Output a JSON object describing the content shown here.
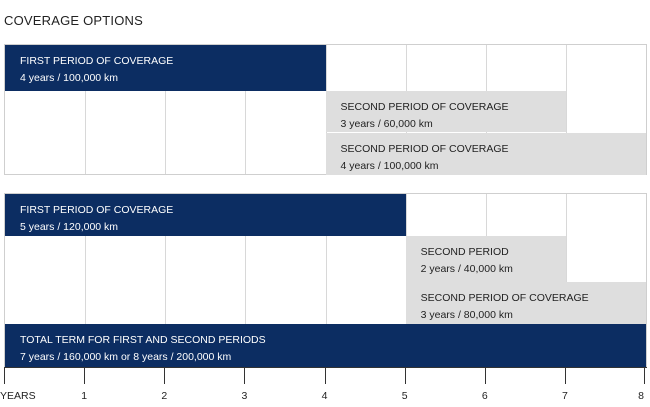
{
  "title": "COVERAGE OPTIONS",
  "option1": {
    "first": {
      "title": "FIRST PERIOD OF COVERAGE",
      "detail": "4 years / 100,000 km",
      "start_year": 0,
      "end_year": 4
    },
    "second_a": {
      "title": "SECOND PERIOD OF COVERAGE",
      "detail": "3 years / 60,000 km",
      "start_year": 4,
      "end_year": 7
    },
    "second_b": {
      "title": "SECOND PERIOD OF COVERAGE",
      "detail": "4 years / 100,000 km",
      "start_year": 4,
      "end_year": 8
    }
  },
  "option2": {
    "first": {
      "title": "FIRST PERIOD OF COVERAGE",
      "detail": "5 years / 120,000 km",
      "start_year": 0,
      "end_year": 5
    },
    "second_a": {
      "title": "SECOND PERIOD",
      "detail": "2 years / 40,000 km",
      "start_year": 5,
      "end_year": 7
    },
    "second_b": {
      "title": "SECOND PERIOD OF COVERAGE",
      "detail": "3 years / 80,000 km",
      "start_year": 5,
      "end_year": 8
    },
    "total": {
      "title": "TOTAL TERM FOR FIRST AND SECOND PERIODS",
      "detail": "7 years / 160,000 km or 8 years / 200,000 km",
      "start_year": 0,
      "end_year": 8
    }
  },
  "axis": {
    "labels": [
      "YEARS",
      "1",
      "2",
      "3",
      "4",
      "5",
      "6",
      "7",
      "8"
    ],
    "max_year": 8
  },
  "colors": {
    "navy": "#0c2d62",
    "grey": "#dedede"
  }
}
